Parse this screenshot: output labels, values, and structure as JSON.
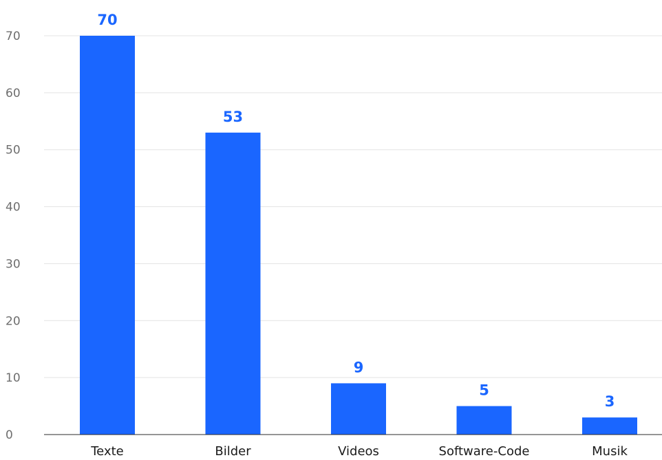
{
  "chart_data": {
    "type": "bar",
    "categories": [
      "Texte",
      "Bilder",
      "Videos",
      "Software-Code",
      "Musik"
    ],
    "values": [
      70,
      53,
      9,
      5,
      3
    ],
    "data_labels": [
      "70",
      "53",
      "9",
      "5",
      "3"
    ],
    "title": "",
    "xlabel": "",
    "ylabel": "",
    "ylim": [
      0,
      70
    ],
    "yticks": [
      0,
      10,
      20,
      30,
      40,
      50,
      60,
      70
    ],
    "grid": true,
    "legend": "none",
    "bar_color": "#1a66ff",
    "label_color": "#1a66ff"
  }
}
